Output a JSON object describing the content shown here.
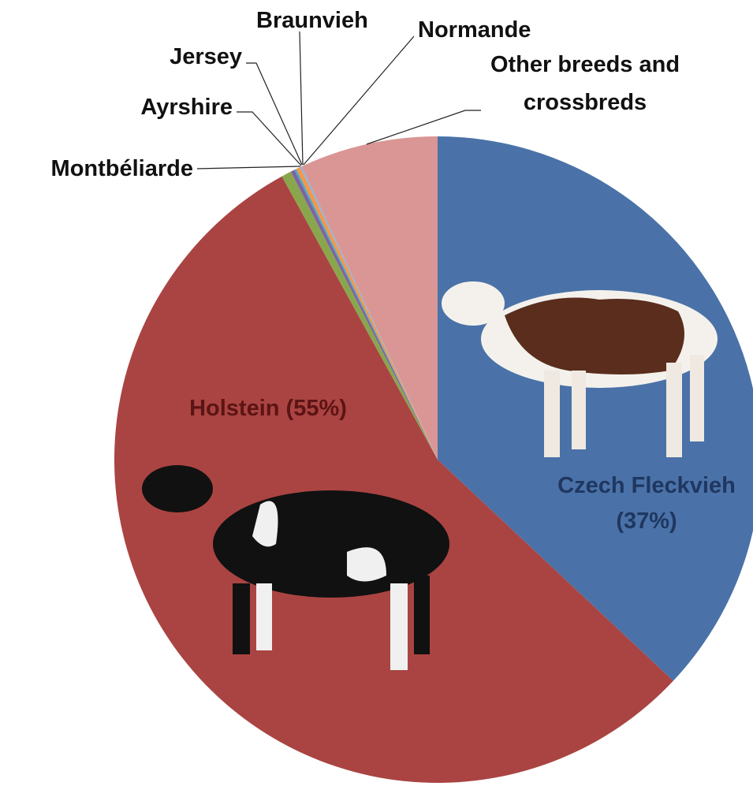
{
  "chart_data": {
    "type": "pie",
    "categories": [
      "Czech Fleckvieh",
      "Holstein",
      "Montbéliarde",
      "Ayrshire",
      "Jersey",
      "Braunvieh",
      "Normande",
      "Other breeds and crossbreds"
    ],
    "values": [
      37,
      55,
      0.5,
      0.2,
      0.1,
      0.2,
      0.1,
      6.9
    ],
    "value_labels": [
      "(37%)",
      "(55%)",
      null,
      null,
      null,
      null,
      null,
      null
    ],
    "colors": [
      "#4a72a8",
      "#aa4442",
      "#8aa64c",
      "#7f63a0",
      "#4bacc6",
      "#f79646",
      "#95b3d7",
      "#d99694"
    ]
  }
}
